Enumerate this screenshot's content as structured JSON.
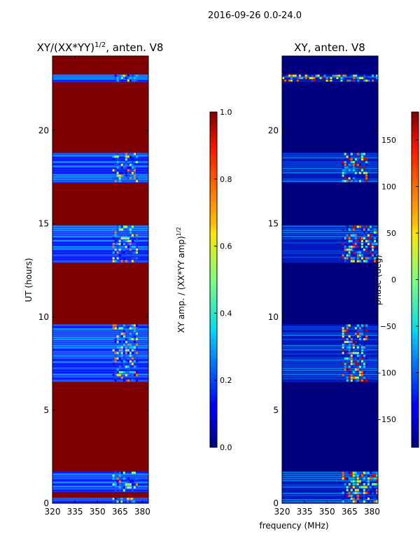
{
  "figure_title": "2016-09-26 0.0-24.0",
  "chart_data": [
    {
      "type": "heatmap",
      "title": "XY/(XX*YY)",
      "title_superscript": "1/2",
      "title_suffix": ", anten. V8",
      "xlabel": "",
      "ylabel": "UT (hours)",
      "xlim": [
        320,
        384
      ],
      "ylim": [
        0,
        24
      ],
      "xticks": [
        320,
        335,
        350,
        365,
        380
      ],
      "yticks": [
        0,
        5,
        10,
        15,
        20
      ],
      "background_value": 1.0,
      "value_bands": [
        {
          "from": 0.0,
          "to": 0.3,
          "channel_band_from": 360,
          "channel_band_to": 375
        },
        {
          "from": 0.6,
          "to": 1.7,
          "channel_band_from": 360,
          "channel_band_to": 377
        },
        {
          "from": 6.5,
          "to": 9.6,
          "channel_band_from": 360,
          "channel_band_to": 377
        },
        {
          "from": 12.9,
          "to": 14.9,
          "channel_band_from": 360,
          "channel_band_to": 377
        },
        {
          "from": 17.2,
          "to": 18.8,
          "channel_band_from": 360,
          "channel_band_to": 377
        },
        {
          "from": 22.6,
          "to": 23.0,
          "channel_band_from": 360,
          "channel_band_to": 377
        }
      ],
      "colorbar": {
        "label": "XY amp. / (XX*YY amp)",
        "label_superscript": "1/2",
        "range": [
          0.0,
          1.0
        ],
        "ticks": [
          0.0,
          0.2,
          0.4,
          0.6,
          0.8,
          1.0
        ],
        "tick_labels": [
          "0.0",
          "0.2",
          "0.4",
          "0.6",
          "0.8",
          "1.0"
        ]
      }
    },
    {
      "type": "heatmap",
      "title": "XY, anten. V8",
      "xlabel": "frequency (MHz)",
      "ylabel": "",
      "xlim": [
        320,
        384
      ],
      "ylim": [
        0,
        24
      ],
      "xticks": [
        320,
        335,
        350,
        365,
        380
      ],
      "yticks": [
        0,
        5,
        10,
        15,
        20
      ],
      "background_value": -180,
      "value_bands": [
        {
          "from": 0.0,
          "to": 1.7,
          "channel_band_from": 360,
          "channel_band_to": 384
        },
        {
          "from": 6.5,
          "to": 9.6,
          "channel_band_from": 360,
          "channel_band_to": 377
        },
        {
          "from": 12.9,
          "to": 14.9,
          "channel_band_from": 360,
          "channel_band_to": 384
        },
        {
          "from": 17.2,
          "to": 18.8,
          "channel_band_from": 360,
          "channel_band_to": 377
        },
        {
          "from": 22.6,
          "to": 23.0,
          "channel_band_from": 320,
          "channel_band_to": 384
        }
      ],
      "colorbar": {
        "label": "phase (deg)",
        "range": [
          -180,
          180
        ],
        "ticks": [
          -150,
          -100,
          -50,
          0,
          50,
          100,
          150
        ],
        "tick_labels": [
          "−150",
          "−100",
          "−50",
          "0",
          "50",
          "100",
          "150"
        ]
      }
    }
  ]
}
